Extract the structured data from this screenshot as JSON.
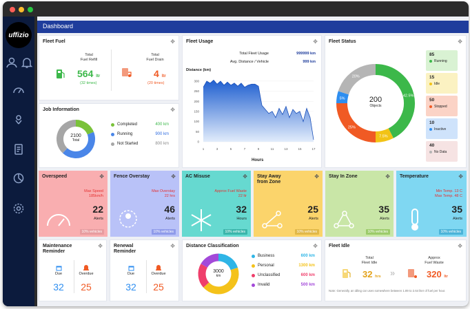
{
  "app": {
    "logo_text": "uffizio",
    "title": "Dashboard"
  },
  "colors": {
    "header": "#1f3d9c",
    "sidebar": "#0c1b3d"
  },
  "sidebar_icons": [
    "user-icon",
    "bell-icon",
    "speedometer-icon",
    "map-pin-icon",
    "document-icon",
    "pie-chart-icon",
    "settings-icon"
  ],
  "fleet_fuel": {
    "title": "Fleet Fuel",
    "refill_label": "Total\nFuel Refill",
    "refill_value": "564",
    "refill_unit": "ltr",
    "refill_times": "(32 times)",
    "drain_label": "Total\nFuel Drain",
    "drain_value": "4",
    "drain_unit": "ltr",
    "drain_times": "(20 times)"
  },
  "fleet_usage": {
    "title": "Fleet Usage",
    "total_label": "Total Fleet Usage",
    "total_value": "999999 km",
    "avg_label": "Avg. Distance / Vehicle",
    "avg_value": "999 km",
    "y_label": "Distance (km)",
    "x_label": "Hours"
  },
  "chart_data": {
    "type": "area",
    "title": "",
    "xlabel": "Hours",
    "ylabel": "Distance (km)",
    "yticks": [
      0,
      50,
      100,
      150,
      200,
      250,
      300
    ],
    "xticks": [
      1,
      3,
      5,
      7,
      9,
      11,
      13,
      15,
      17
    ],
    "ylim": [
      0,
      320
    ],
    "x": [
      1,
      1.5,
      2,
      2.5,
      3,
      3.5,
      4,
      4.5,
      5,
      5.5,
      6,
      6.5,
      7,
      7.5,
      8,
      8.5,
      9,
      9.5,
      10,
      10.5,
      11,
      11.5,
      12,
      12.5,
      13,
      13.5,
      14,
      14.5,
      15,
      15.5,
      16,
      16.5,
      17
    ],
    "values": [
      270,
      300,
      290,
      305,
      285,
      300,
      280,
      295,
      280,
      290,
      275,
      290,
      270,
      280,
      285,
      285,
      275,
      180,
      160,
      140,
      150,
      120,
      165,
      135,
      175,
      120,
      160,
      140,
      150,
      100,
      165,
      120,
      10
    ]
  },
  "fleet_status": {
    "title": "Fleet Status",
    "center_value": "200",
    "center_label": "Objects",
    "segments": [
      {
        "label": "Running",
        "value": "85",
        "percent": "42.5%",
        "color": "#3cb84a",
        "bg": "#d9f2d3"
      },
      {
        "label": "Idle",
        "value": "15",
        "percent": "7.5%",
        "color": "#f2c316",
        "bg": "#fbf2c2"
      },
      {
        "label": "Stopped",
        "value": "50",
        "percent": "25%",
        "color": "#f05a24",
        "bg": "#fbd3c6"
      },
      {
        "label": "Inactive",
        "value": "10",
        "percent": "5%",
        "color": "#2e8ef0",
        "bg": "#cfe3fb"
      },
      {
        "label": "No Data",
        "value": "40",
        "percent": "20%",
        "color": "#b5b5b5",
        "bg": "#f6e3e3"
      }
    ]
  },
  "job_info": {
    "title": "Job Information",
    "center_value": "2100",
    "center_label": "Total",
    "items": [
      {
        "label": "Completed",
        "value": "400 km",
        "color": "#7ac23a"
      },
      {
        "label": "Running",
        "value": "900 km",
        "color": "#4a86e8"
      },
      {
        "label": "Not Started",
        "value": "800 km",
        "color": "#a6a6a6"
      }
    ]
  },
  "alerts": [
    {
      "title": "Overspeed",
      "line1": "Max Speed",
      "line2": "185km/h",
      "num": "22",
      "label": "Alerts",
      "badge": "10% vehicles",
      "bg": "#f9aeb0",
      "badge_bg": "#e79ca0"
    },
    {
      "title": "Fence Overstay",
      "line1": "Max Overstay",
      "line2": "22 hrs",
      "num": "46",
      "label": "Alerts",
      "badge": "10% vehicles",
      "bg": "#b9c2f8",
      "badge_bg": "#8f9bea"
    },
    {
      "title": "AC Misuse",
      "line1": "Approx Fuel Waste",
      "line2": "22 ltr",
      "num": "32",
      "label": "Hours",
      "badge": "10% vehicles",
      "bg": "#66d9d0",
      "badge_bg": "#3bb5ab"
    },
    {
      "title": "Stay Away\nfrom Zone",
      "line1": "",
      "line2": "",
      "num": "25",
      "label": "Alerts",
      "badge": "10% vehicles",
      "bg": "#fbd46b",
      "badge_bg": "#e1b848"
    },
    {
      "title": "Stay In Zone",
      "line1": "",
      "line2": "",
      "num": "35",
      "label": "Alerts",
      "badge": "10% vehicles",
      "bg": "#c9e6a7",
      "badge_bg": "#9ccb6a"
    },
    {
      "title": "Temperature",
      "line1": "Min Temp. 13 C",
      "line2": "Max Temp. 48 C",
      "num": "35",
      "label": "Alerts",
      "badge": "10% vehicles",
      "bg": "#7fd7f2",
      "badge_bg": "#4bb3d8"
    }
  ],
  "maintenance": {
    "title": "Maintenance\nReminder",
    "due_label": "Due",
    "due_value": "32",
    "overdue_label": "Overdue",
    "overdue_value": "25"
  },
  "renewal": {
    "title": "Renewal\nReminder",
    "due_label": "Due",
    "due_value": "32",
    "overdue_label": "Overdue",
    "overdue_value": "25"
  },
  "distance_class": {
    "title": "Distance Classification",
    "center_value": "3000",
    "center_label": "km",
    "items": [
      {
        "label": "Business",
        "value": "600 km",
        "color": "#2fb5e6"
      },
      {
        "label": "Personal",
        "value": "1300 km",
        "color": "#f4c21a"
      },
      {
        "label": "Unclassified",
        "value": "600 km",
        "color": "#ef3e6b"
      },
      {
        "label": "Invalid",
        "value": "500 km",
        "color": "#a349d9"
      }
    ]
  },
  "fleet_idle": {
    "title": "Fleet Idle",
    "idle_label": "Total\nFleet Idle",
    "idle_value": "32",
    "idle_unit": "hrs",
    "waste_label": "Approx\nFuel Waste",
    "waste_value": "320",
    "waste_unit": "ltr",
    "note": "Note: Generally, an idling car uses somewhere between 1.89 to 2.64 liter of fuel per hour."
  }
}
